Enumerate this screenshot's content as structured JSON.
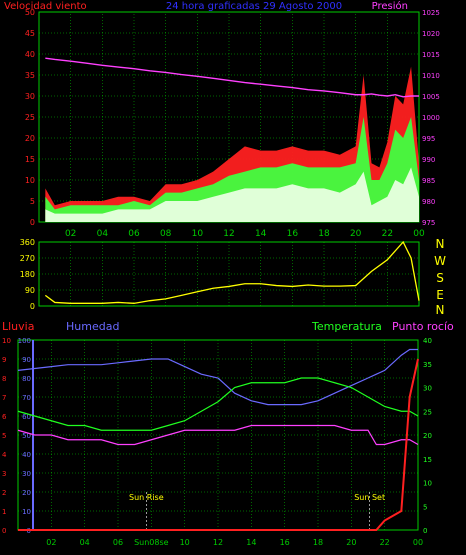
{
  "header": {
    "left_label": "Velocidad viento",
    "title": "24 hora graficadas 29 Agosto 2000",
    "right_label": "Presión"
  },
  "lower_header": {
    "rain": "Lluvia",
    "humidity": "Humedad",
    "temperature": "Temperatura",
    "dewpoint": "Punto rocío"
  },
  "x_ticks": [
    "02",
    "04",
    "06",
    "08",
    "10",
    "12",
    "14",
    "16",
    "18",
    "20",
    "22",
    "00"
  ],
  "lower_x_ticks": [
    "02",
    "04",
    "06",
    "Sun08se",
    "10",
    "12",
    "14",
    "16",
    "18",
    "20",
    "22",
    "00"
  ],
  "compass": [
    "N",
    "W",
    "S",
    "E",
    "N"
  ],
  "events": {
    "sunrise": "Sun Rise",
    "sunset": "Sun Set"
  },
  "colors": {
    "grid": "#00cc00",
    "wind": "#ff2020",
    "wind_avg": "#40ff40",
    "wind_base": "#e8ffe0",
    "pressure": "#ff40ff",
    "direction": "#ffff00",
    "humidity": "#6a6aff",
    "temperature": "#20ff20",
    "dewpoint": "#ff40ff",
    "rain": "#ff2020",
    "title": "#3030ff"
  },
  "chart_data": [
    {
      "type": "line",
      "name": "wind-pressure",
      "x_hours": [
        0.4,
        1,
        2,
        3,
        4,
        5,
        6,
        7,
        8,
        9,
        10,
        11,
        12,
        13,
        14,
        15,
        16,
        17,
        18,
        19,
        20,
        20.5,
        21,
        21.5,
        22,
        22.5,
        23,
        23.5,
        24
      ],
      "series": [
        {
          "name": "Velocidad viento (gust)",
          "axis": "left",
          "values": [
            8,
            4,
            5,
            5,
            5,
            6,
            6,
            5,
            9,
            9,
            10,
            12,
            15,
            18,
            17,
            17,
            18,
            17,
            17,
            16,
            18,
            35,
            14,
            13,
            19,
            30,
            28,
            37,
            14
          ]
        },
        {
          "name": "Velocidad viento (avg)",
          "axis": "left",
          "values": [
            6,
            3,
            4,
            4,
            4,
            4,
            5,
            4,
            7,
            7,
            8,
            9,
            11,
            12,
            13,
            13,
            14,
            13,
            13,
            13,
            14,
            25,
            10,
            10,
            14,
            22,
            20,
            25,
            10
          ]
        },
        {
          "name": "Velocidad viento (base)",
          "axis": "left",
          "values": [
            3,
            2,
            2,
            2,
            2,
            3,
            3,
            3,
            5,
            5,
            5,
            6,
            7,
            8,
            8,
            8,
            9,
            8,
            8,
            7,
            9,
            12,
            4,
            5,
            6,
            10,
            9,
            13,
            6
          ]
        },
        {
          "name": "Presión",
          "axis": "right",
          "values": [
            1014,
            1013.7,
            1013.3,
            1012.8,
            1012.3,
            1011.9,
            1011.5,
            1011,
            1010.6,
            1010.1,
            1009.7,
            1009.2,
            1008.7,
            1008.2,
            1007.8,
            1007.4,
            1007,
            1006.5,
            1006.2,
            1005.8,
            1005.3,
            1005.3,
            1005.5,
            1005.2,
            1005,
            1005.3,
            1004.8,
            1005,
            1005
          ]
        }
      ],
      "xlim": [
        0,
        24
      ],
      "ylim": [
        0,
        50
      ],
      "ylim_right": [
        975,
        1025
      ],
      "yticks": [
        0,
        5,
        10,
        15,
        20,
        25,
        30,
        35,
        40,
        45,
        50
      ],
      "yticks_right": [
        975,
        980,
        985,
        990,
        995,
        1000,
        1005,
        1010,
        1015,
        1020,
        1025
      ],
      "grid": true
    },
    {
      "type": "line",
      "name": "wind-direction",
      "x_hours": [
        0.4,
        1,
        2,
        3,
        4,
        5,
        6,
        7,
        8,
        9,
        10,
        11,
        12,
        13,
        14,
        15,
        16,
        17,
        18,
        19,
        20,
        21,
        22,
        23,
        23.5,
        24
      ],
      "series": [
        {
          "name": "Dirección",
          "values": [
            60,
            20,
            15,
            15,
            15,
            20,
            15,
            30,
            40,
            60,
            80,
            100,
            110,
            125,
            125,
            115,
            110,
            118,
            112,
            112,
            115,
            195,
            260,
            360,
            270,
            30
          ]
        }
      ],
      "xlim": [
        0,
        24
      ],
      "ylim": [
        0,
        360
      ],
      "yticks": [
        0,
        90,
        180,
        270,
        360
      ],
      "grid": true
    },
    {
      "type": "line",
      "name": "humidity-temperature-rain",
      "x_hours": [
        0,
        1,
        2,
        3,
        4,
        5,
        6,
        7,
        8,
        9,
        10,
        11,
        12,
        13,
        14,
        15,
        16,
        17,
        18,
        19,
        20,
        21,
        21.5,
        22,
        23,
        23.5,
        24
      ],
      "series": [
        {
          "name": "Humedad",
          "axis": "humidity",
          "values": [
            84,
            85,
            86,
            87,
            87,
            87,
            88,
            89,
            90,
            90,
            86,
            82,
            80,
            72,
            68,
            66,
            66,
            66,
            68,
            72,
            76,
            80,
            82,
            84,
            92,
            95,
            95
          ]
        },
        {
          "name": "Temperatura",
          "axis": "temp",
          "values": [
            25,
            24,
            23,
            22,
            22,
            21,
            21,
            21,
            21,
            22,
            23,
            25,
            27,
            30,
            31,
            31,
            31,
            32,
            32,
            31,
            30,
            28,
            27,
            26,
            25,
            25,
            24
          ]
        },
        {
          "name": "Punto rocío",
          "axis": "temp",
          "values": [
            21,
            20,
            20,
            19,
            19,
            19,
            18,
            18,
            19,
            20,
            21,
            21,
            21,
            21,
            22,
            22,
            22,
            22,
            22,
            22,
            21,
            21,
            18,
            18,
            19,
            19,
            18
          ]
        },
        {
          "name": "Lluvia",
          "axis": "rain",
          "values": [
            0,
            0,
            0,
            0,
            0,
            0,
            0,
            0,
            0,
            0,
            0,
            0,
            0,
            0,
            0,
            0,
            0,
            0,
            0,
            0,
            0,
            0,
            0,
            0.5,
            1,
            7,
            9
          ]
        }
      ],
      "xlim": [
        0,
        24
      ],
      "ylim_rain": [
        0,
        10
      ],
      "yticks_rain": [
        0,
        1,
        2,
        3,
        4,
        5,
        6,
        7,
        8,
        9,
        10
      ],
      "ylim_humidity": [
        0,
        100
      ],
      "yticks_humidity": [
        0,
        10,
        20,
        30,
        40,
        50,
        60,
        70,
        80,
        90,
        100
      ],
      "ylim_temp": [
        0,
        40
      ],
      "yticks_temp": [
        0,
        5,
        10,
        15,
        20,
        25,
        30,
        35,
        40
      ],
      "events": [
        {
          "label": "Sun Rise",
          "x_hour": 7.7
        },
        {
          "label": "Sun Set",
          "x_hour": 21.1
        }
      ],
      "grid": true
    }
  ]
}
